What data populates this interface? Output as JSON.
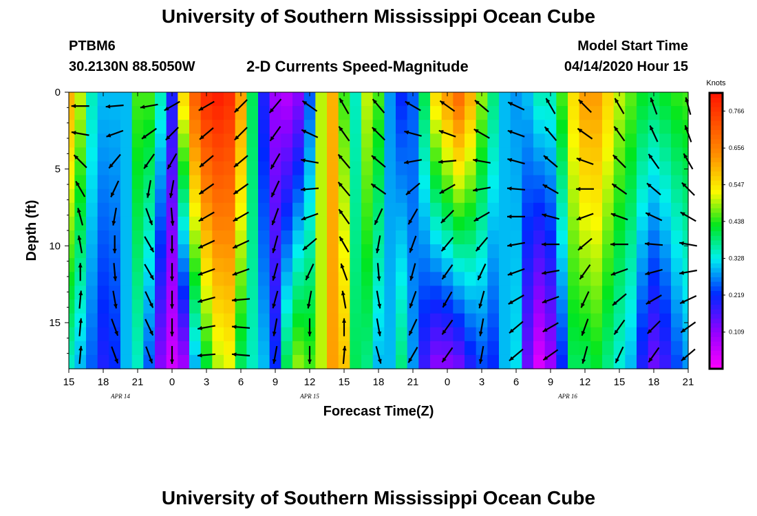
{
  "page": {
    "title_top": "University of Southern Mississippi Ocean Cube",
    "title_bottom": "University of Southern Mississippi Ocean Cube",
    "station_id": "PTBM6",
    "station_location": "30.2130N 88.5050W",
    "plot_title": "2-D Currents Speed-Magnitude",
    "model_start_label": "Model Start Time",
    "model_start_value": "04/14/2020 Hour 15"
  },
  "chart_data": {
    "type": "heatmap",
    "title": "2-D Currents Speed-Magnitude",
    "xlabel": "Forecast Time(Z)",
    "ylabel": "Depth (ft)",
    "xlim": [
      0,
      54
    ],
    "ylim": [
      18,
      0
    ],
    "x_ticks": [
      0,
      3,
      6,
      9,
      12,
      15,
      18,
      21,
      24,
      27,
      30,
      33,
      36,
      39,
      42,
      45,
      48,
      51,
      54
    ],
    "x_tick_labels": [
      "15",
      "18",
      "21",
      "0",
      "3",
      "6",
      "9",
      "12",
      "15",
      "18",
      "21",
      "0",
      "3",
      "6",
      "9",
      "12",
      "15",
      "18",
      "21"
    ],
    "y_ticks": [
      0,
      5,
      10,
      15
    ],
    "y_tick_labels": [
      "0",
      "5",
      "10",
      "15"
    ],
    "date_labels": [
      {
        "text": "APR  14",
        "x": 4.5
      },
      {
        "text": "APR  15",
        "x": 21
      },
      {
        "text": "APR  16",
        "x": 43.5
      }
    ],
    "colorbar": {
      "title": "Knots",
      "vmin": 0.0,
      "vmax": 0.82,
      "ticks": [
        0.109,
        0.219,
        0.328,
        0.438,
        0.547,
        0.656,
        0.766
      ],
      "tick_labels": [
        "0.109",
        "0.219",
        "0.328",
        "0.438",
        "0.547",
        "0.656",
        "0.766"
      ]
    },
    "speed_profile_knots": {
      "x": [
        0,
        1,
        2,
        3,
        4,
        5,
        6,
        7,
        8,
        9,
        10,
        11,
        12,
        13,
        14,
        15,
        16,
        17,
        18,
        19,
        20,
        21,
        22,
        23,
        24,
        25,
        26,
        27,
        28,
        29,
        30,
        31,
        32,
        33,
        34,
        35,
        36,
        37,
        38,
        39,
        40,
        41,
        42,
        43,
        44,
        45,
        46,
        47,
        48,
        49,
        50,
        51,
        52,
        53,
        54
      ],
      "surface": [
        0.6,
        0.5,
        0.35,
        0.3,
        0.3,
        0.3,
        0.45,
        0.45,
        0.35,
        0.2,
        0.55,
        0.7,
        0.78,
        0.8,
        0.78,
        0.62,
        0.4,
        0.2,
        0.1,
        0.08,
        0.12,
        0.25,
        0.5,
        0.6,
        0.45,
        0.35,
        0.5,
        0.45,
        0.28,
        0.22,
        0.25,
        0.4,
        0.55,
        0.62,
        0.68,
        0.6,
        0.48,
        0.38,
        0.3,
        0.28,
        0.3,
        0.35,
        0.35,
        0.45,
        0.55,
        0.62,
        0.62,
        0.56,
        0.5,
        0.46,
        0.42,
        0.4,
        0.42,
        0.44,
        0.45
      ],
      "bottom": [
        0.35,
        0.3,
        0.25,
        0.2,
        0.22,
        0.3,
        0.35,
        0.25,
        0.12,
        0.05,
        0.1,
        0.3,
        0.42,
        0.5,
        0.52,
        0.4,
        0.35,
        0.3,
        0.22,
        0.4,
        0.48,
        0.45,
        0.5,
        0.62,
        0.58,
        0.4,
        0.38,
        0.3,
        0.3,
        0.38,
        0.28,
        0.18,
        0.12,
        0.12,
        0.14,
        0.2,
        0.24,
        0.22,
        0.3,
        0.32,
        0.14,
        0.04,
        0.1,
        0.22,
        0.4,
        0.4,
        0.42,
        0.38,
        0.34,
        0.3,
        0.2,
        0.14,
        0.18,
        0.24,
        0.28
      ]
    },
    "vector_columns": [
      {
        "x": 1,
        "dir": [
          -90,
          -80,
          -45,
          -30,
          -15,
          -10,
          0,
          5,
          5,
          5
        ]
      },
      {
        "x": 4,
        "dir": [
          -95,
          -110,
          -140,
          -155,
          -170,
          180,
          175,
          170,
          160,
          160
        ]
      },
      {
        "x": 7,
        "dir": [
          -100,
          -125,
          -145,
          -170,
          160,
          150,
          150,
          155,
          155,
          160
        ]
      },
      {
        "x": 9,
        "dir": [
          -120,
          -135,
          -150,
          -170,
          175,
          180,
          180,
          180,
          180,
          180
        ]
      },
      {
        "x": 12,
        "dir": [
          -120,
          -130,
          -130,
          -125,
          -120,
          -115,
          -110,
          -105,
          -100,
          -95
        ]
      },
      {
        "x": 15,
        "dir": [
          -135,
          -135,
          -130,
          -125,
          -120,
          -115,
          -110,
          -95,
          -85,
          -85
        ]
      },
      {
        "x": 18,
        "dir": [
          -140,
          -145,
          -150,
          -155,
          -160,
          -165,
          -165,
          -165,
          -170,
          -170
        ]
      },
      {
        "x": 21,
        "dir": [
          -55,
          -65,
          -80,
          -95,
          -110,
          -130,
          -155,
          -170,
          180,
          180
        ]
      },
      {
        "x": 24,
        "dir": [
          -30,
          -35,
          -40,
          -40,
          -35,
          -30,
          -20,
          -10,
          0,
          5
        ]
      },
      {
        "x": 27,
        "dir": [
          -40,
          -45,
          -50,
          -55,
          -155,
          -170,
          175,
          170,
          170,
          165
        ]
      },
      {
        "x": 30,
        "dir": [
          -60,
          -75,
          -100,
          -130,
          -150,
          -160,
          -165,
          -160,
          -155,
          -150
        ]
      },
      {
        "x": 33,
        "dir": [
          -55,
          -70,
          -95,
          -120,
          -135,
          -140,
          -145,
          -150,
          -145,
          -145
        ]
      },
      {
        "x": 36,
        "dir": [
          -50,
          -60,
          -80,
          -100,
          -120,
          -140,
          -155,
          -165,
          -170,
          -170
        ]
      },
      {
        "x": 39,
        "dir": [
          -65,
          -70,
          -75,
          -85,
          -90,
          -100,
          -110,
          -120,
          -130,
          -130
        ]
      },
      {
        "x": 42,
        "dir": [
          -30,
          -40,
          -50,
          -60,
          -75,
          -90,
          -100,
          -110,
          -120,
          -125
        ]
      },
      {
        "x": 45,
        "dir": [
          -45,
          -55,
          -70,
          -90,
          -110,
          -130,
          -145,
          -155,
          -160,
          -165
        ]
      },
      {
        "x": 48,
        "dir": [
          -30,
          -35,
          -45,
          -55,
          -70,
          -90,
          -110,
          -130,
          -145,
          -155
        ]
      },
      {
        "x": 51,
        "dir": [
          -20,
          -25,
          -35,
          -50,
          -65,
          -85,
          -105,
          -120,
          -135,
          -145
        ]
      },
      {
        "x": 54,
        "dir": [
          -15,
          -20,
          -30,
          -45,
          -60,
          -80,
          -100,
          -115,
          -125,
          -130
        ]
      }
    ]
  }
}
